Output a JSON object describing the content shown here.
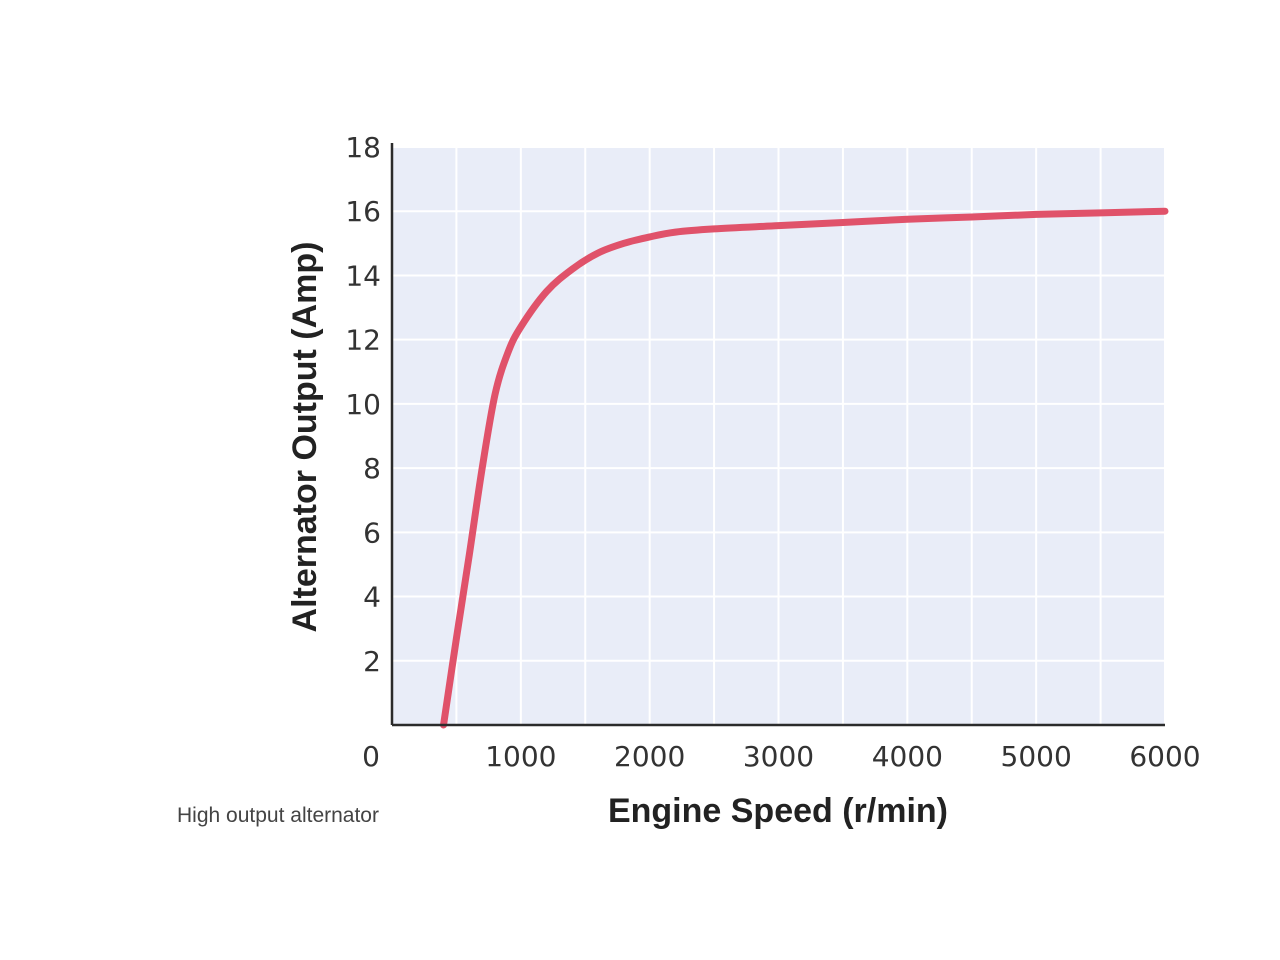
{
  "chart_data": {
    "type": "line",
    "title": "",
    "caption": "High output alternator",
    "xlabel": "Engine Speed (r/min)",
    "ylabel": "Alternator Output (Amp)",
    "xlim": [
      0,
      6000
    ],
    "ylim": [
      0,
      18
    ],
    "x_ticks": [
      "0",
      "1000",
      "2000",
      "3000",
      "4000",
      "5000",
      "6000"
    ],
    "y_ticks": [
      "2",
      "4",
      "6",
      "8",
      "10",
      "12",
      "14",
      "16",
      "18"
    ],
    "grid": true,
    "series": [
      {
        "x": [
          400,
          500,
          600,
          700,
          800,
          900,
          1000,
          1200,
          1400,
          1600,
          1800,
          2000,
          2200,
          2500,
          3000,
          3500,
          4000,
          4500,
          5000,
          5500,
          6000
        ],
        "values": [
          0,
          2.7,
          5.3,
          8.0,
          10.3,
          11.6,
          12.4,
          13.5,
          14.2,
          14.7,
          15.0,
          15.2,
          15.35,
          15.45,
          15.55,
          15.65,
          15.75,
          15.82,
          15.9,
          15.95,
          16.0
        ]
      }
    ],
    "colors": {
      "line": "#e0526a",
      "plot_background": "#e9edf8",
      "grid": "#ffffff",
      "axis": "#2b2b2b"
    }
  }
}
